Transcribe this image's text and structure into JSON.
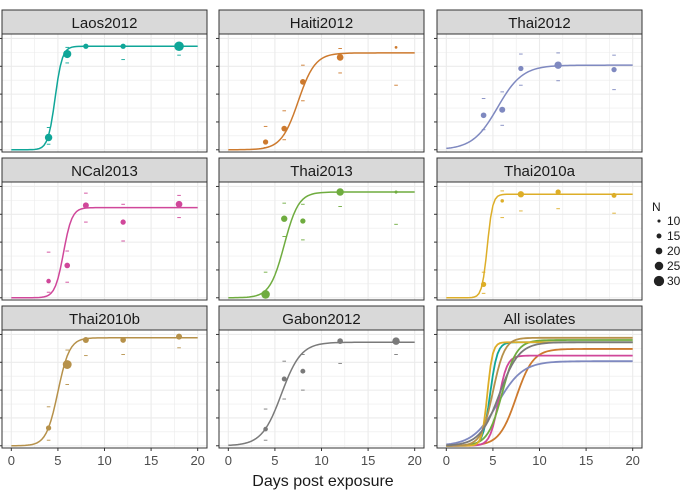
{
  "chart_data": {
    "type": "scatter",
    "xlabel": "Days post exposure",
    "ylabel": "",
    "xlim": [
      -1,
      21
    ],
    "ylim": [
      0,
      1
    ],
    "x_ticks": [
      0,
      5,
      10,
      15,
      20
    ],
    "grid": true,
    "legend": {
      "title": "N",
      "position": "right",
      "entries": [
        "10",
        "15",
        "20",
        "25",
        "30"
      ],
      "sizes": [
        10,
        15,
        20,
        25,
        30
      ]
    },
    "panels": [
      {
        "name": "Laos2012",
        "color": "#0fa698",
        "fit": {
          "asymptote": 0.93,
          "midpoint": 4.7,
          "rate": 2.6
        },
        "points": [
          {
            "x": 4,
            "y": 0.11,
            "n": 22,
            "ylo": 0.05,
            "yhi": 0.2
          },
          {
            "x": 6,
            "y": 0.86,
            "n": 24,
            "ylo": 0.78,
            "yhi": 0.92
          },
          {
            "x": 8,
            "y": 0.93,
            "n": 16
          },
          {
            "x": 12,
            "y": 0.93,
            "n": 16,
            "ylo": 0.81
          },
          {
            "x": 18,
            "y": 0.93,
            "n": 28,
            "ylo": 0.85
          }
        ]
      },
      {
        "name": "Haiti2012",
        "color": "#cd7a2e",
        "fit": {
          "asymptote": 0.87,
          "midpoint": 7.5,
          "rate": 1.1
        },
        "points": [
          {
            "x": 4,
            "y": 0.07,
            "n": 16,
            "ylo": 0.02,
            "yhi": 0.21
          },
          {
            "x": 6,
            "y": 0.19,
            "n": 17,
            "ylo": 0.09,
            "yhi": 0.35
          },
          {
            "x": 8,
            "y": 0.61,
            "n": 17,
            "ylo": 0.44,
            "yhi": 0.76
          },
          {
            "x": 12,
            "y": 0.83,
            "n": 20,
            "ylo": 0.69,
            "yhi": 0.91
          },
          {
            "x": 18,
            "y": 0.92,
            "n": 9,
            "ylo": 0.58
          }
        ]
      },
      {
        "name": "Thai2012",
        "color": "#7f89c0",
        "fit": {
          "asymptote": 0.76,
          "midpoint": 5.5,
          "rate": 0.75
        },
        "points": [
          {
            "x": 4,
            "y": 0.31,
            "n": 17,
            "ylo": 0.18,
            "yhi": 0.46
          },
          {
            "x": 6,
            "y": 0.36,
            "n": 18,
            "ylo": 0.22,
            "yhi": 0.52
          },
          {
            "x": 8,
            "y": 0.73,
            "n": 16,
            "ylo": 0.58,
            "yhi": 0.86
          },
          {
            "x": 12,
            "y": 0.76,
            "n": 22,
            "ylo": 0.62,
            "yhi": 0.87
          },
          {
            "x": 18,
            "y": 0.72,
            "n": 16,
            "ylo": 0.54,
            "yhi": 0.85
          }
        ]
      },
      {
        "name": "NCal2013",
        "color": "#d0479a",
        "fit": {
          "asymptote": 0.81,
          "midpoint": 5.6,
          "rate": 2.2
        },
        "points": [
          {
            "x": 4,
            "y": 0.15,
            "n": 14,
            "ylo": 0.05,
            "yhi": 0.41
          },
          {
            "x": 6,
            "y": 0.29,
            "n": 17,
            "ylo": 0.14,
            "yhi": 0.42
          },
          {
            "x": 8,
            "y": 0.83,
            "n": 18,
            "ylo": 0.68,
            "yhi": 0.94
          },
          {
            "x": 12,
            "y": 0.68,
            "n": 16,
            "ylo": 0.51,
            "yhi": 0.84
          },
          {
            "x": 18,
            "y": 0.84,
            "n": 20,
            "ylo": 0.72,
            "yhi": 0.92
          }
        ]
      },
      {
        "name": "Thai2013",
        "color": "#6fac3f",
        "fit": {
          "asymptote": 0.95,
          "midpoint": 6.0,
          "rate": 1.3
        },
        "points": [
          {
            "x": 4,
            "y": 0.03,
            "n": 25,
            "ylo": 0.0,
            "yhi": 0.23
          },
          {
            "x": 6,
            "y": 0.71,
            "n": 19,
            "ylo": 0.55,
            "yhi": 0.85
          },
          {
            "x": 8,
            "y": 0.69,
            "n": 16,
            "ylo": 0.52,
            "yhi": 0.84
          },
          {
            "x": 12,
            "y": 0.95,
            "n": 22,
            "ylo": 0.82
          },
          {
            "x": 18,
            "y": 0.95,
            "n": 10,
            "ylo": 0.66
          }
        ]
      },
      {
        "name": "Thai2010a",
        "color": "#ddae28",
        "fit": {
          "asymptote": 0.93,
          "midpoint": 4.4,
          "rate": 3.5
        },
        "points": [
          {
            "x": 4,
            "y": 0.12,
            "n": 16,
            "ylo": 0.04,
            "yhi": 0.23
          },
          {
            "x": 6,
            "y": 0.87,
            "n": 11,
            "ylo": 0.72,
            "yhi": 0.96
          },
          {
            "x": 8,
            "y": 0.93,
            "n": 19,
            "ylo": 0.78
          },
          {
            "x": 12,
            "y": 0.95,
            "n": 16,
            "ylo": 0.8
          },
          {
            "x": 18,
            "y": 0.92,
            "n": 15,
            "ylo": 0.76
          }
        ]
      },
      {
        "name": "Thai2010b",
        "color": "#b6914a",
        "fit": {
          "asymptote": 0.97,
          "midpoint": 5.0,
          "rate": 1.6
        },
        "points": [
          {
            "x": 4,
            "y": 0.16,
            "n": 16,
            "ylo": 0.05,
            "yhi": 0.35
          },
          {
            "x": 6,
            "y": 0.73,
            "n": 26,
            "ylo": 0.55,
            "yhi": 0.86
          },
          {
            "x": 8,
            "y": 0.95,
            "n": 18,
            "ylo": 0.81
          },
          {
            "x": 12,
            "y": 0.95,
            "n": 17,
            "ylo": 0.82
          },
          {
            "x": 18,
            "y": 0.98,
            "n": 18,
            "ylo": 0.88
          }
        ]
      },
      {
        "name": "Gabon2012",
        "color": "#7a7a7a",
        "fit": {
          "asymptote": 0.93,
          "midpoint": 5.7,
          "rate": 0.95
        },
        "points": [
          {
            "x": 4,
            "y": 0.15,
            "n": 14,
            "ylo": 0.05,
            "yhi": 0.33
          },
          {
            "x": 6,
            "y": 0.6,
            "n": 15,
            "ylo": 0.42,
            "yhi": 0.76
          },
          {
            "x": 8,
            "y": 0.67,
            "n": 15,
            "ylo": 0.5,
            "yhi": 0.82
          },
          {
            "x": 12,
            "y": 0.94,
            "n": 17,
            "ylo": 0.74
          },
          {
            "x": 18,
            "y": 0.94,
            "n": 22,
            "ylo": 0.82
          }
        ]
      },
      {
        "name": "All isolates",
        "curves": [
          "Laos2012",
          "Haiti2012",
          "Thai2012",
          "NCal2013",
          "Thai2013",
          "Thai2010a",
          "Thai2010b",
          "Gabon2012"
        ],
        "points": []
      }
    ]
  }
}
